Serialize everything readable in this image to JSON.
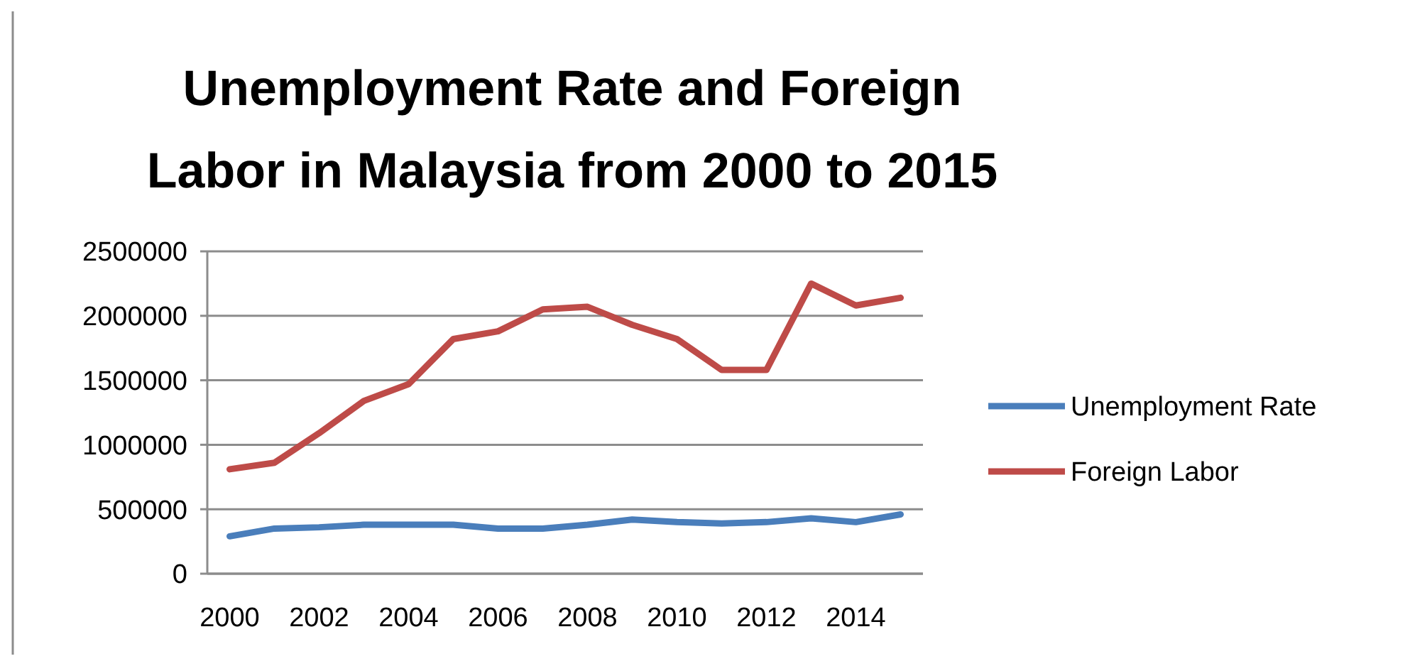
{
  "chart_data": {
    "type": "line",
    "title": "Unemployment Rate and Foreign Labor in Malaysia from 2000 to 2015",
    "categories": [
      "2000",
      null,
      "2002",
      null,
      "2004",
      null,
      "2006",
      null,
      "2008",
      null,
      "2010",
      null,
      "2012",
      null,
      "2014",
      null
    ],
    "series": [
      {
        "name": "Unemployment Rate",
        "color": "#4a7ebb",
        "values": [
          290000,
          350000,
          360000,
          380000,
          380000,
          380000,
          350000,
          350000,
          380000,
          420000,
          400000,
          390000,
          400000,
          430000,
          400000,
          460000
        ]
      },
      {
        "name": "Foreign Labor",
        "color": "#be4b48",
        "values": [
          810000,
          860000,
          1090000,
          1340000,
          1470000,
          1820000,
          1880000,
          2050000,
          2070000,
          1930000,
          1820000,
          1580000,
          1580000,
          2250000,
          2080000,
          2140000
        ]
      }
    ],
    "ylim": [
      0,
      2500000
    ],
    "yticks": [
      0,
      500000,
      1000000,
      1500000,
      2000000,
      2500000
    ],
    "grid": "y",
    "legend": "right",
    "marker": "none",
    "line_style": "solid"
  }
}
